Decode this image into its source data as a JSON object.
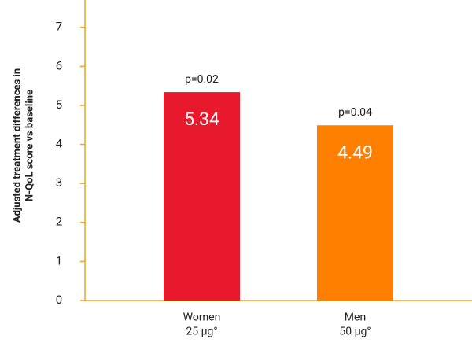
{
  "chart_data": {
    "type": "bar",
    "ylabel": [
      "Adjusted treatment differences in",
      "N-QoL score vs baseline"
    ],
    "categories": [
      [
        "Women",
        "25 µg°"
      ],
      [
        "Men",
        "50 µg°"
      ]
    ],
    "values": [
      5.34,
      4.49
    ],
    "colors": [
      "#e8192c",
      "#ff8000"
    ],
    "annotations": [
      "p=0.02",
      "p=0.04"
    ],
    "ylim": [
      0,
      7.7
    ],
    "yticks": [
      0,
      1,
      2,
      3,
      4,
      5,
      6,
      7
    ]
  }
}
